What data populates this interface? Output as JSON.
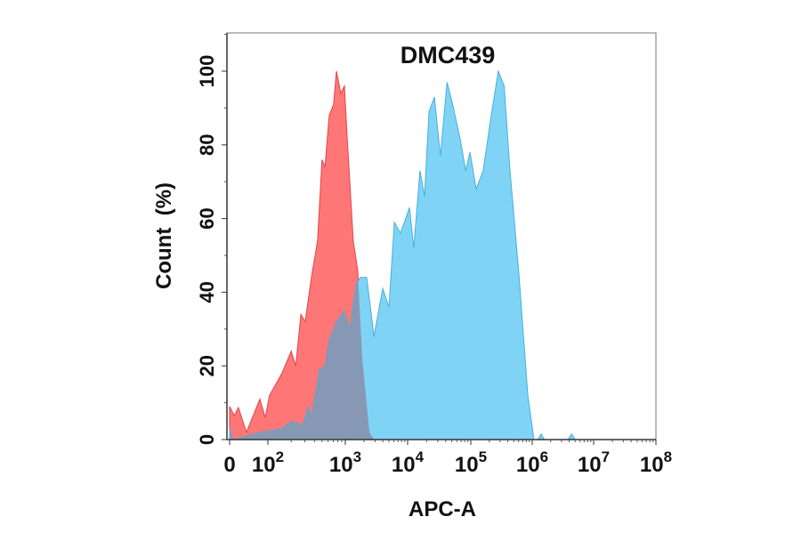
{
  "chart_data": {
    "type": "area",
    "title": "DMC439",
    "xlabel": "APC-A",
    "ylabel": "Count  (%)",
    "x_scale": "biexponential (linear 0–100, log above)",
    "xlim": [
      0,
      100000000
    ],
    "ylim": [
      0,
      110
    ],
    "grid": false,
    "legend": "none",
    "x_ticks": [
      {
        "value": 0,
        "base": "0",
        "exp": ""
      },
      {
        "value": 100,
        "base": "10",
        "exp": "2"
      },
      {
        "value": 1000,
        "base": "10",
        "exp": "3"
      },
      {
        "value": 10000,
        "base": "10",
        "exp": "4"
      },
      {
        "value": 100000,
        "base": "10",
        "exp": "5"
      },
      {
        "value": 1000000,
        "base": "10",
        "exp": "6"
      },
      {
        "value": 10000000,
        "base": "10",
        "exp": "7"
      },
      {
        "value": 100000000,
        "base": "10",
        "exp": "8"
      }
    ],
    "y_ticks": [
      0,
      20,
      40,
      60,
      80,
      100
    ],
    "colors": {
      "red": "#ff7676",
      "blue": "#7fd4f6",
      "overlap": "#8798b4",
      "red_line": "#e0474a",
      "blue_line": "#4aaed8"
    },
    "series": [
      {
        "color": "#ff7676",
        "x": [
          0,
          12,
          23,
          44,
          79,
          93,
          105,
          152,
          200,
          229,
          267,
          303,
          365,
          438,
          500,
          545,
          620,
          705,
          767,
          875,
          975,
          1070,
          1340,
          1580,
          1870,
          2440,
          2880
        ],
        "y": [
          9,
          6.5,
          8.7,
          2,
          11,
          6,
          12,
          18,
          24,
          20,
          34,
          32,
          44,
          54,
          76,
          74,
          88,
          91,
          100,
          94,
          96,
          82,
          54,
          46,
          22,
          2,
          0
        ]
      },
      {
        "color": "#7fd4f6",
        "x": [
          0,
          9,
          81,
          152,
          200,
          283,
          331,
          365,
          460,
          545,
          620,
          767,
          975,
          1180,
          1480,
          1740,
          2200,
          2880,
          3980,
          5010,
          6120,
          7690,
          10700,
          12500,
          15700,
          18500,
          21800,
          26500,
          33000,
          42000,
          50000,
          67000,
          83000,
          97000,
          122000,
          159000,
          215000,
          280000,
          350000,
          430000,
          600000,
          850000,
          1070000,
          1230000,
          1400000,
          1580000,
          3800000,
          4400000,
          5000000
        ],
        "y": [
          3,
          0,
          2,
          3,
          5,
          4,
          9,
          6,
          19,
          20,
          27,
          32,
          35,
          30,
          42,
          44,
          44,
          28,
          41,
          36,
          59,
          56,
          63,
          52,
          73,
          66,
          89,
          93,
          77,
          97,
          92,
          82,
          73,
          78,
          68,
          73,
          88,
          100,
          96,
          74,
          46,
          12,
          0,
          0,
          1.5,
          0,
          0,
          1.5,
          0
        ]
      }
    ]
  }
}
